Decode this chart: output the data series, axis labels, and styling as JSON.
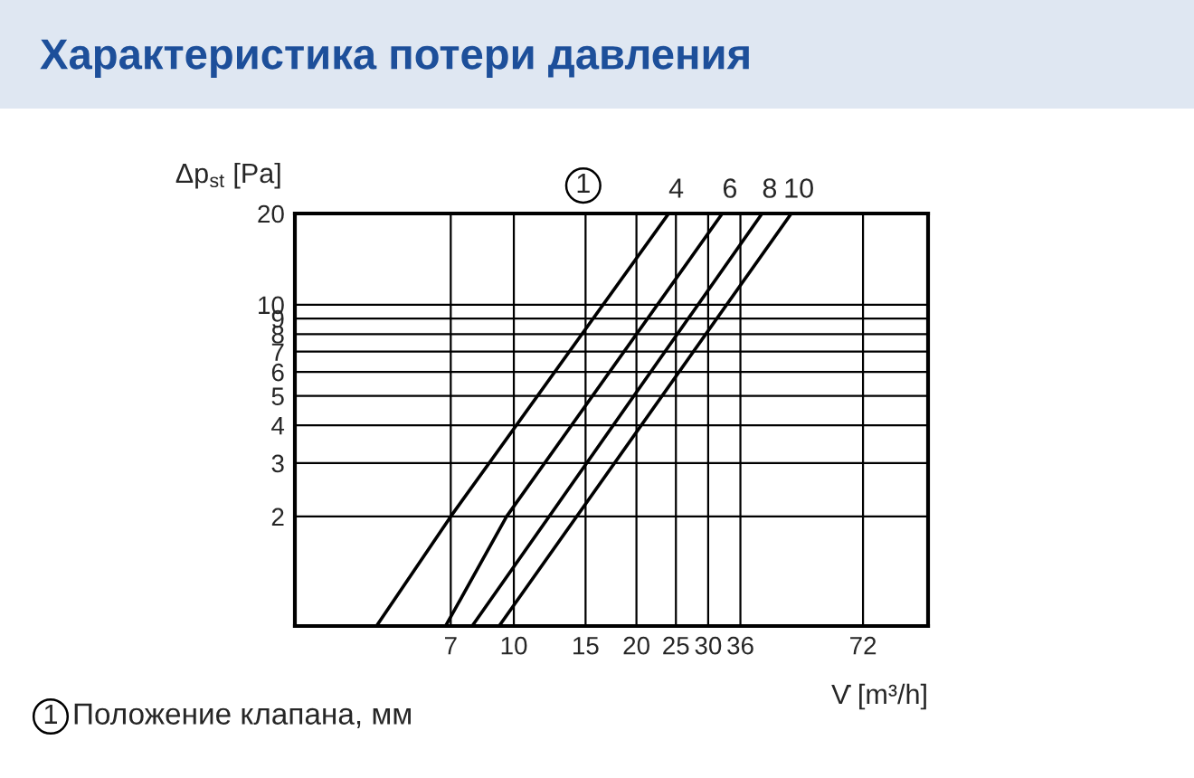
{
  "chart_data": {
    "type": "line",
    "title": "Характеристика потери давления",
    "xlabel": "V̇ [m³/h]",
    "ylabel": "Δp$_{st}$ [Pa]",
    "log": "xy",
    "grid": true,
    "legend": false,
    "marker": "none",
    "line_style": "solid",
    "xlim": [
      2.9,
      104
    ],
    "xticks": [
      7,
      10,
      15,
      20,
      25,
      30,
      36,
      72
    ],
    "ylim": [
      0.87,
      20
    ],
    "yticks": [
      2,
      3,
      4,
      5,
      6,
      7,
      8,
      9,
      10,
      20
    ],
    "series": [
      {
        "name": "4",
        "color": "#000000",
        "x": [
          4.6,
          7,
          24
        ],
        "values": [
          0.87,
          2,
          20
        ]
      },
      {
        "name": "6",
        "color": "#000000",
        "x": [
          6.8,
          9.6,
          32.5
        ],
        "values": [
          0.87,
          2,
          20
        ]
      },
      {
        "name": "8",
        "color": "#000000",
        "x": [
          7.9,
          40.7
        ],
        "values": [
          0.87,
          20
        ]
      },
      {
        "name": "10",
        "color": "#000000",
        "x": [
          9.2,
          48
        ],
        "values": [
          0.87,
          20
        ]
      }
    ],
    "annotations": [
      "1",
      "1 Положение клапана, мм"
    ]
  }
}
